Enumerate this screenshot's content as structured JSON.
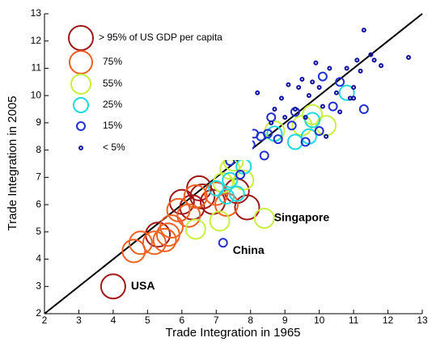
{
  "chart_data": {
    "type": "scatter",
    "x_label": "Trade Integration in 1965",
    "y_label": "Trade Integration in 2005",
    "xlim": [
      2,
      13
    ],
    "ylim": [
      2,
      13
    ],
    "xticks": [
      2,
      3,
      4,
      5,
      6,
      7,
      8,
      9,
      10,
      11,
      12,
      13
    ],
    "yticks": [
      2,
      3,
      4,
      5,
      6,
      7,
      8,
      9,
      10,
      11,
      12,
      13
    ],
    "fit_line": {
      "x": [
        2,
        13
      ],
      "y": [
        2,
        13
      ],
      "color": "#000000"
    },
    "legend": "upper left",
    "series": [
      {
        "name": "> 95% of US GDP per capita",
        "color": "#a01818",
        "x": [
          4.0,
          5.3,
          6.0,
          6.3,
          6.6,
          6.9,
          7.6,
          7.9,
          6.5
        ],
        "y": [
          3.0,
          4.9,
          6.1,
          5.9,
          6.3,
          6.1,
          6.5,
          5.9,
          6.6
        ]
      },
      {
        "name": "75%",
        "color": "#f06020",
        "x": [
          4.6,
          4.8,
          5.2,
          5.5,
          5.6,
          5.7,
          6.2,
          6.4,
          7.0,
          7.3,
          5.9
        ],
        "y": [
          4.3,
          4.6,
          4.6,
          4.7,
          4.9,
          5.2,
          5.6,
          6.3,
          6.4,
          6.0,
          5.8
        ]
      },
      {
        "name": "55%",
        "color": "#c8f040",
        "x": [
          6.4,
          7.1,
          8.4,
          7.5,
          7.2,
          7.8,
          9.5,
          10.2,
          9.8,
          8.7,
          7.4
        ],
        "y": [
          5.1,
          5.4,
          5.5,
          7.6,
          6.8,
          6.9,
          8.9,
          8.9,
          9.3,
          8.7,
          7.3
        ]
      },
      {
        "name": "25%",
        "color": "#20d8e0",
        "x": [
          7.0,
          7.3,
          7.6,
          7.4,
          7.8,
          9.3,
          9.7,
          9.8,
          8.7,
          10.8
        ],
        "y": [
          6.6,
          6.3,
          6.4,
          6.9,
          7.4,
          8.3,
          8.5,
          9.1,
          8.6,
          10.1
        ]
      },
      {
        "name": "15%",
        "color": "#2030d0",
        "x": [
          7.2,
          7.4,
          7.7,
          7.8,
          8.0,
          8.1,
          8.3,
          8.5,
          8.6,
          8.8,
          9.2,
          9.6,
          10.0,
          10.1,
          10.4,
          10.6,
          11.3,
          7.6,
          8.4,
          9.3
        ],
        "y": [
          4.6,
          7.6,
          7.1,
          8.3,
          8.2,
          8.6,
          8.5,
          8.6,
          9.2,
          8.4,
          8.9,
          8.3,
          8.7,
          10.7,
          9.6,
          10.5,
          9.5,
          7.8,
          7.8,
          9.4
        ]
      },
      {
        "name": "< 5%",
        "color": "#1010a0",
        "x": [
          8.2,
          8.6,
          8.9,
          9.0,
          9.1,
          9.3,
          9.4,
          9.5,
          9.7,
          9.9,
          10.0,
          10.1,
          10.3,
          10.5,
          10.6,
          10.8,
          10.9,
          11.0,
          11.1,
          11.2,
          11.3,
          11.5,
          11.6,
          11.8,
          12.6,
          9.6,
          10.2,
          11.0,
          8.7,
          9.8
        ],
        "y": [
          10.1,
          9.0,
          9.9,
          9.2,
          10.4,
          9.5,
          10.3,
          10.6,
          10.0,
          11.2,
          10.3,
          9.6,
          11.0,
          10.1,
          9.4,
          11.0,
          9.9,
          10.3,
          11.3,
          10.9,
          12.4,
          11.5,
          11.3,
          11.1,
          11.4,
          9.2,
          8.5,
          9.9,
          9.5,
          10.5
        ]
      }
    ],
    "annotations": [
      {
        "text": "Singapore",
        "x": 8.4,
        "y": 5.5
      },
      {
        "text": "China",
        "x": 7.2,
        "y": 4.6
      },
      {
        "text": "USA",
        "x": 4.0,
        "y": 3.0
      }
    ]
  }
}
